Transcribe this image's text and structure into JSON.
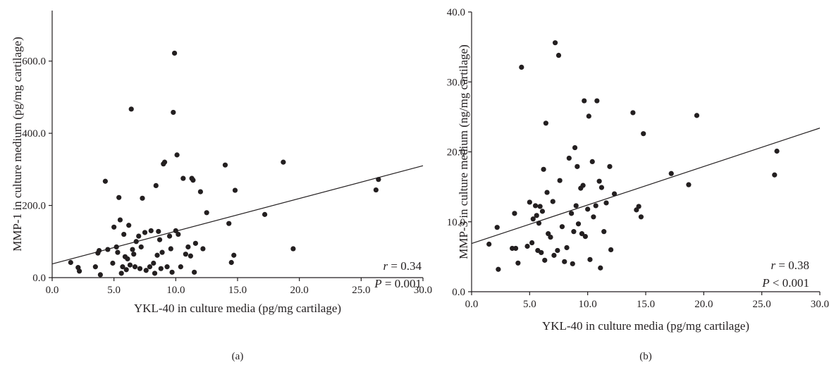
{
  "chart_data": [
    {
      "type": "scatter",
      "panel_label": "(a)",
      "xlabel": "YKL-40 in culture media (pg/mg cartilage)",
      "ylabel": "MMP-1 in culture medium (pg/mg cartilage)",
      "xlim": [
        0,
        30
      ],
      "ylim": [
        0,
        740
      ],
      "x_ticks": [
        "0.0",
        "5.0",
        "10.0",
        "15.0",
        "20.0",
        "25.0",
        "30.0"
      ],
      "x_tick_values": [
        0,
        5,
        10,
        15,
        20,
        25,
        30
      ],
      "y_ticks": [
        "0.0",
        "200.0",
        "400.0",
        "600.0"
      ],
      "y_tick_values": [
        0,
        200,
        400,
        600
      ],
      "stats": {
        "r_label": "r",
        "r_value": "= 0.34",
        "p_label": "P",
        "p_value": "= 0.001"
      },
      "regression": {
        "x": [
          0,
          30
        ],
        "y": [
          38,
          310
        ]
      },
      "points": [
        [
          1.5,
          42
        ],
        [
          2.1,
          28
        ],
        [
          2.2,
          18
        ],
        [
          3.5,
          30
        ],
        [
          3.7,
          68
        ],
        [
          3.8,
          75
        ],
        [
          3.9,
          8
        ],
        [
          4.3,
          267
        ],
        [
          4.5,
          78
        ],
        [
          4.9,
          40
        ],
        [
          5.0,
          140
        ],
        [
          5.2,
          85
        ],
        [
          5.3,
          70
        ],
        [
          5.4,
          222
        ],
        [
          5.5,
          160
        ],
        [
          5.6,
          12
        ],
        [
          5.7,
          30
        ],
        [
          5.8,
          120
        ],
        [
          5.9,
          58
        ],
        [
          6.0,
          22
        ],
        [
          6.1,
          52
        ],
        [
          6.2,
          145
        ],
        [
          6.3,
          35
        ],
        [
          6.4,
          467
        ],
        [
          6.5,
          78
        ],
        [
          6.6,
          65
        ],
        [
          6.7,
          30
        ],
        [
          6.8,
          100
        ],
        [
          7.0,
          115
        ],
        [
          7.1,
          25
        ],
        [
          7.2,
          85
        ],
        [
          7.3,
          220
        ],
        [
          7.5,
          125
        ],
        [
          7.6,
          20
        ],
        [
          7.9,
          30
        ],
        [
          8.0,
          130
        ],
        [
          8.2,
          40
        ],
        [
          8.3,
          12
        ],
        [
          8.4,
          255
        ],
        [
          8.5,
          62
        ],
        [
          8.6,
          128
        ],
        [
          8.7,
          105
        ],
        [
          8.8,
          25
        ],
        [
          8.9,
          70
        ],
        [
          9.0,
          315
        ],
        [
          9.1,
          320
        ],
        [
          9.3,
          30
        ],
        [
          9.5,
          115
        ],
        [
          9.6,
          80
        ],
        [
          9.7,
          15
        ],
        [
          9.8,
          458
        ],
        [
          9.9,
          622
        ],
        [
          10.0,
          130
        ],
        [
          10.1,
          340
        ],
        [
          10.2,
          120
        ],
        [
          10.4,
          30
        ],
        [
          10.6,
          275
        ],
        [
          10.8,
          65
        ],
        [
          11.0,
          85
        ],
        [
          11.2,
          60
        ],
        [
          11.3,
          275
        ],
        [
          11.4,
          270
        ],
        [
          11.5,
          15
        ],
        [
          11.6,
          95
        ],
        [
          12.0,
          238
        ],
        [
          12.2,
          80
        ],
        [
          12.5,
          180
        ],
        [
          14.0,
          312
        ],
        [
          14.3,
          150
        ],
        [
          14.5,
          42
        ],
        [
          14.7,
          62
        ],
        [
          14.8,
          242
        ],
        [
          17.2,
          175
        ],
        [
          18.7,
          320
        ],
        [
          19.5,
          80
        ],
        [
          26.2,
          243
        ],
        [
          26.4,
          272
        ]
      ]
    },
    {
      "type": "scatter",
      "panel_label": "(b)",
      "xlabel": "YKL-40 in culture media (pg/mg cartilage)",
      "ylabel": "MMP-3 in culture medium (ng/mg cartilage)",
      "xlim": [
        0,
        30
      ],
      "ylim": [
        0,
        40
      ],
      "x_ticks": [
        "0.0",
        "5.0",
        "10.0",
        "15.0",
        "20.0",
        "25.0",
        "30.0"
      ],
      "x_tick_values": [
        0,
        5,
        10,
        15,
        20,
        25,
        30
      ],
      "y_ticks": [
        "0.0",
        "10.0",
        "20.0",
        "30.0",
        "40.0"
      ],
      "y_tick_values": [
        0,
        10,
        20,
        30,
        40
      ],
      "stats": {
        "r_label": "r",
        "r_value": "= 0.38",
        "p_label": "P",
        "p_value": "< 0.001"
      },
      "regression": {
        "x": [
          0,
          30
        ],
        "y": [
          6.9,
          23.4
        ]
      },
      "points": [
        [
          1.5,
          6.8
        ],
        [
          2.2,
          9.2
        ],
        [
          2.3,
          3.2
        ],
        [
          3.5,
          6.2
        ],
        [
          3.7,
          11.2
        ],
        [
          3.8,
          6.2
        ],
        [
          4.0,
          4.1
        ],
        [
          4.3,
          32.1
        ],
        [
          4.8,
          6.5
        ],
        [
          5.0,
          12.8
        ],
        [
          5.2,
          7.0
        ],
        [
          5.3,
          10.4
        ],
        [
          5.5,
          12.3
        ],
        [
          5.6,
          10.9
        ],
        [
          5.7,
          5.9
        ],
        [
          5.8,
          9.8
        ],
        [
          5.9,
          12.2
        ],
        [
          6.0,
          5.6
        ],
        [
          6.1,
          11.5
        ],
        [
          6.2,
          17.5
        ],
        [
          6.3,
          4.5
        ],
        [
          6.4,
          24.1
        ],
        [
          6.5,
          14.2
        ],
        [
          6.6,
          8.3
        ],
        [
          6.8,
          7.8
        ],
        [
          7.0,
          12.9
        ],
        [
          7.1,
          5.2
        ],
        [
          7.2,
          35.6
        ],
        [
          7.4,
          5.9
        ],
        [
          7.5,
          33.8
        ],
        [
          7.6,
          15.9
        ],
        [
          7.8,
          9.3
        ],
        [
          8.0,
          4.3
        ],
        [
          8.2,
          6.3
        ],
        [
          8.4,
          19.1
        ],
        [
          8.6,
          11.2
        ],
        [
          8.7,
          4.0
        ],
        [
          8.8,
          8.6
        ],
        [
          8.9,
          20.6
        ],
        [
          9.0,
          12.3
        ],
        [
          9.1,
          17.9
        ],
        [
          9.2,
          9.7
        ],
        [
          9.4,
          14.8
        ],
        [
          9.5,
          8.3
        ],
        [
          9.6,
          15.2
        ],
        [
          9.7,
          27.3
        ],
        [
          9.8,
          7.9
        ],
        [
          10.0,
          11.8
        ],
        [
          10.1,
          25.1
        ],
        [
          10.2,
          4.6
        ],
        [
          10.4,
          18.6
        ],
        [
          10.5,
          10.7
        ],
        [
          10.7,
          12.3
        ],
        [
          10.8,
          27.3
        ],
        [
          11.0,
          15.8
        ],
        [
          11.1,
          3.4
        ],
        [
          11.2,
          14.9
        ],
        [
          11.4,
          8.6
        ],
        [
          11.6,
          12.7
        ],
        [
          11.9,
          17.9
        ],
        [
          12.0,
          6.0
        ],
        [
          12.3,
          14.0
        ],
        [
          13.9,
          25.6
        ],
        [
          14.2,
          11.7
        ],
        [
          14.4,
          12.2
        ],
        [
          14.6,
          10.7
        ],
        [
          14.8,
          22.6
        ],
        [
          17.2,
          16.9
        ],
        [
          18.7,
          15.3
        ],
        [
          19.4,
          25.2
        ],
        [
          26.1,
          16.7
        ],
        [
          26.3,
          20.1
        ]
      ]
    }
  ]
}
